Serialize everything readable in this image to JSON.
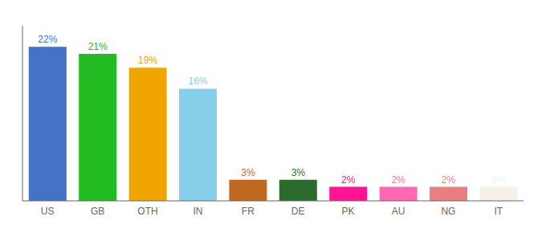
{
  "chart_data": {
    "type": "bar",
    "categories": [
      "US",
      "GB",
      "OTH",
      "IN",
      "FR",
      "DE",
      "PK",
      "AU",
      "NG",
      "IT"
    ],
    "values": [
      22,
      21,
      19,
      16,
      3,
      3,
      2,
      2,
      2,
      2
    ],
    "value_labels": [
      "22%",
      "21%",
      "19%",
      "16%",
      "3%",
      "3%",
      "2%",
      "2%",
      "2%",
      "2%"
    ],
    "colors": [
      "#4472c4",
      "#22bb22",
      "#f0a500",
      "#87ceeb",
      "#c06820",
      "#2d6a2d",
      "#ff1493",
      "#ff69b4",
      "#e88080",
      "#f5f0e8"
    ],
    "ylim": [
      0,
      25
    ],
    "data_labels": true,
    "tick_labels": "x",
    "grid": false
  }
}
